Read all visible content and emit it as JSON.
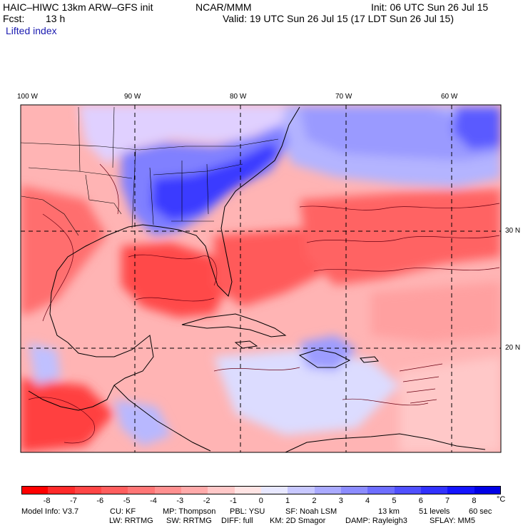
{
  "header": {
    "model": "HAIC–HIWC 13km ARW–GFS init",
    "org": "NCAR/MMM",
    "init": "Init: 06 UTC Sun 26 Jul 15",
    "fcst_label": "Fcst:",
    "fcst_value": "13 h",
    "valid": "Valid: 19 UTC Sun 26 Jul 15 (17 LDT Sun 26 Jul 15)",
    "field": "Lifted index"
  },
  "map": {
    "longitude_labels": [
      "100 W",
      "90 W",
      "80 W",
      "70 W",
      "60 W"
    ],
    "latitude_labels": [
      "30 N",
      "20 N"
    ],
    "gridlines": "dashed"
  },
  "colorbar": {
    "ticks": [
      "-8",
      "-7",
      "-6",
      "-5",
      "-4",
      "-3",
      "-2",
      "-1",
      "0",
      "1",
      "2",
      "3",
      "4",
      "5",
      "6",
      "7",
      "8"
    ],
    "unit": "°C",
    "colors": [
      "#ff0000",
      "#ff2a2a",
      "#ff4646",
      "#ff5e5e",
      "#ff7676",
      "#ff9090",
      "#ffaaaa",
      "#ffc8c8",
      "#ffe4e4",
      "#e8e8ff",
      "#c8c8ff",
      "#aaaaff",
      "#8c8cff",
      "#6e6eff",
      "#5050ff",
      "#3232ff",
      "#1414ff",
      "#0000e6"
    ]
  },
  "footer": {
    "line1": [
      "Model Info: V3.7",
      "CU: KF",
      "MP: Thompson",
      "PBL: YSU",
      "SF: Noah LSM",
      "13 km",
      "51 levels",
      "60 sec"
    ],
    "line2": [
      "LW: RRTMG",
      "SW: RRTMG",
      "DIFF: full",
      "KM: 2D Smagor",
      "DAMP: Rayleigh3",
      "SFLAY: MM5"
    ]
  }
}
